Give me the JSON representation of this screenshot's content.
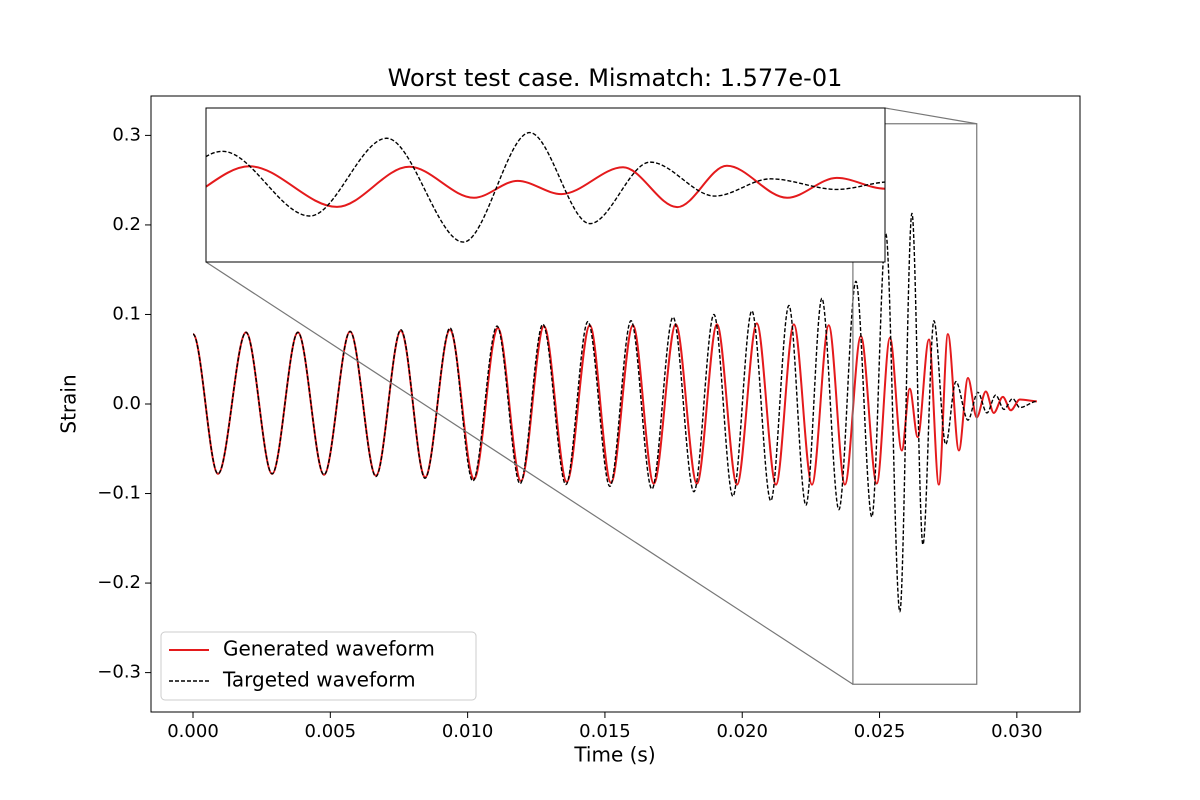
{
  "chart_data": {
    "type": "line",
    "title": "Worst test case. Mismatch: 1.577e-01",
    "xlabel": "Time (s)",
    "ylabel": "Strain",
    "xlim": [
      -0.00153,
      0.0323
    ],
    "ylim": [
      -0.344,
      0.344
    ],
    "xticks": [
      {
        "value": 0,
        "label": "0.000"
      },
      {
        "value": 0.005,
        "label": "0.005"
      },
      {
        "value": 0.01,
        "label": "0.010"
      },
      {
        "value": 0.015,
        "label": "0.015"
      },
      {
        "value": 0.02,
        "label": "0.020"
      },
      {
        "value": 0.025,
        "label": "0.025"
      },
      {
        "value": 0.03,
        "label": "0.030"
      }
    ],
    "yticks": [
      {
        "value": -0.3,
        "label": "−0.3"
      },
      {
        "value": -0.2,
        "label": "−0.2"
      },
      {
        "value": -0.1,
        "label": "−0.1"
      },
      {
        "value": 0,
        "label": "0.0"
      },
      0.1,
      0.2,
      0.3
    ],
    "legend": "lower left",
    "inset": {
      "xlim": [
        0.02403,
        0.02854
      ],
      "ylim": [
        -0.313,
        0.313
      ]
    },
    "series": [
      {
        "name": "Generated waveform",
        "color": "#e41a1c",
        "dash": false,
        "x": [
          0,
          0.00091,
          0.00193,
          0.00288,
          0.00382,
          0.00477,
          0.00572,
          0.00666,
          0.00757,
          0.00845,
          0.00936,
          0.01023,
          0.0111,
          0.01194,
          0.01278,
          0.01361,
          0.01445,
          0.01522,
          0.01602,
          0.01678,
          0.01758,
          0.01835,
          0.01908,
          0.01981,
          0.02053,
          0.02123,
          0.02188,
          0.02254,
          0.02315,
          0.02374,
          0.02432,
          0.0249,
          0.02538,
          0.02581,
          0.0261,
          0.02639,
          0.0268,
          0.02716,
          0.02749,
          0.02789,
          0.02822,
          0.02854,
          0.02887,
          0.02916,
          0.02949,
          0.02978,
          0.03011,
          0.03073
        ],
        "values": [
          0.078,
          -0.078,
          0.08,
          -0.078,
          0.08,
          -0.079,
          0.081,
          -0.08,
          0.082,
          -0.082,
          0.083,
          -0.084,
          0.085,
          -0.086,
          0.087,
          -0.087,
          0.088,
          -0.088,
          0.088,
          -0.089,
          0.089,
          -0.089,
          0.089,
          -0.09,
          0.09,
          -0.09,
          0.089,
          -0.09,
          0.088,
          -0.09,
          0.076,
          -0.089,
          0.074,
          -0.052,
          0.017,
          -0.037,
          0.072,
          -0.09,
          0.078,
          -0.052,
          0.029,
          -0.015,
          0.014,
          -0.01,
          0.008,
          -0.007,
          0.005,
          0.003
        ]
      },
      {
        "name": "Targeted waveform",
        "color": "#000000",
        "dash": true,
        "x": [
          0,
          0.00091,
          0.00193,
          0.00288,
          0.00382,
          0.00477,
          0.00572,
          0.00666,
          0.00757,
          0.00845,
          0.00936,
          0.01019,
          0.01107,
          0.01191,
          0.01274,
          0.01358,
          0.01438,
          0.01518,
          0.01595,
          0.01671,
          0.01748,
          0.01824,
          0.01897,
          0.01966,
          0.02035,
          0.02104,
          0.0217,
          0.02232,
          0.0229,
          0.02352,
          0.02414,
          0.02472,
          0.02523,
          0.02574,
          0.02618,
          0.02658,
          0.02698,
          0.02741,
          0.02778,
          0.02822,
          0.02858,
          0.02891,
          0.02923,
          0.02953,
          0.02985,
          0.03011,
          0.03073
        ],
        "values": [
          0.078,
          -0.078,
          0.08,
          -0.078,
          0.08,
          -0.079,
          0.081,
          -0.081,
          0.083,
          -0.083,
          0.085,
          -0.086,
          0.087,
          -0.089,
          0.089,
          -0.09,
          0.092,
          -0.092,
          0.093,
          -0.095,
          0.097,
          -0.098,
          0.1,
          -0.103,
          0.104,
          -0.108,
          0.11,
          -0.113,
          0.118,
          -0.118,
          0.137,
          -0.126,
          0.19,
          -0.232,
          0.213,
          -0.157,
          0.093,
          -0.045,
          0.025,
          -0.018,
          0.013,
          -0.01,
          0.01,
          -0.006,
          0.006,
          -0.004,
          0.003
        ]
      }
    ]
  }
}
